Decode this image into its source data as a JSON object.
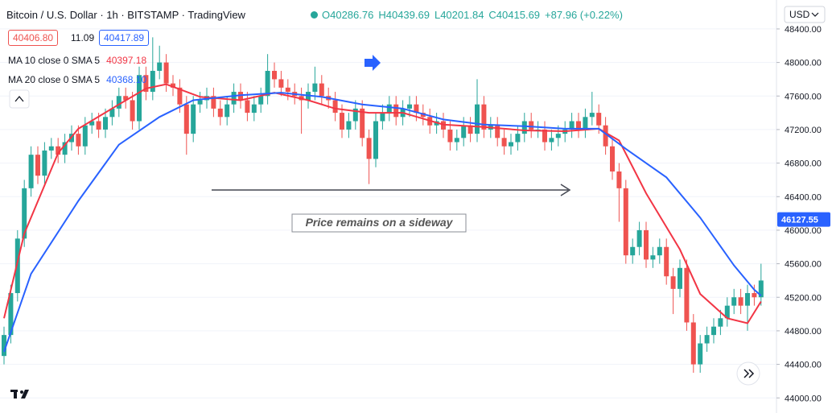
{
  "chart_data": {
    "type": "candlestick",
    "title": "Bitcoin / U.S. Dollar · 1h · BITSTAMP · TradingView",
    "ohlc_legend": [
      "O40286.76",
      "H40439.69",
      "L40201.84",
      "C40415.69",
      "+87.96 (+0.22%)"
    ],
    "quote": {
      "bid": "40406.80",
      "spread": "11.09",
      "ask": "40417.89"
    },
    "currency": "USD",
    "annotation": "Price remains on a sideway",
    "current_price": 46127.55,
    "up_color": "#26a69a",
    "down_color": "#ef5350",
    "ylim": [
      43820,
      48745
    ],
    "yticks": [
      {
        "value": 44000,
        "label": "44000.00"
      },
      {
        "value": 44400,
        "label": "44400.00"
      },
      {
        "value": 44800,
        "label": "44800.00"
      },
      {
        "value": 45200,
        "label": "45200.00"
      },
      {
        "value": 45600,
        "label": "45600.00"
      },
      {
        "value": 46000,
        "label": "46000.00"
      },
      {
        "value": 46400,
        "label": "46400.00"
      },
      {
        "value": 46800,
        "label": "46800.00"
      },
      {
        "value": 47200,
        "label": "47200.00"
      },
      {
        "value": 47600,
        "label": "47600.00"
      },
      {
        "value": 48000,
        "label": "48000.00"
      },
      {
        "value": 48400,
        "label": "48400.00"
      }
    ],
    "grid": true,
    "ohlc": {
      "open": [
        44500,
        44750,
        45250,
        45900,
        46500,
        46900,
        46650,
        46950,
        47000,
        46900,
        47050,
        47150,
        47000,
        47250,
        47300,
        47200,
        47350,
        47450,
        47600,
        47550,
        47300,
        47850,
        47650,
        47900,
        48000,
        47750,
        47700,
        47500,
        47150,
        47500,
        47550,
        47600,
        47450,
        47350,
        47500,
        47650,
        47550,
        47400,
        47500,
        47600,
        47900,
        47800,
        47700,
        47650,
        47600,
        47550,
        47650,
        47750,
        47600,
        47550,
        47400,
        47200,
        47300,
        47450,
        47100,
        46850,
        47300,
        47400,
        47500,
        47350,
        47450,
        47500,
        47400,
        47350,
        47250,
        47300,
        47200,
        47050,
        47100,
        47250,
        47150,
        47500,
        47200,
        47250,
        47100,
        47000,
        47050,
        47150,
        47300,
        47200,
        47200,
        47050,
        47100,
        47150,
        47200,
        47300,
        47200,
        47350,
        47400,
        47250,
        47000,
        46700,
        46500,
        45700,
        45800,
        46000,
        45650,
        45700,
        45800,
        45450,
        45300,
        45550,
        44900,
        44400,
        44650,
        44750,
        44850,
        44950,
        45100,
        45200,
        45100,
        45250,
        45200
      ],
      "high": [
        44850,
        45350,
        46000,
        46600,
        47000,
        47000,
        47050,
        47100,
        47100,
        47150,
        47250,
        47250,
        47350,
        47400,
        47400,
        47450,
        47550,
        47700,
        47700,
        47650,
        47950,
        47950,
        48300,
        48200,
        48100,
        47850,
        47800,
        47600,
        47600,
        47650,
        47700,
        47700,
        47550,
        47600,
        47750,
        47750,
        47650,
        47600,
        47700,
        48100,
        48000,
        47900,
        47800,
        47750,
        47700,
        47750,
        47950,
        47850,
        47700,
        47650,
        47500,
        47400,
        47550,
        47550,
        47200,
        47400,
        47500,
        47600,
        47600,
        47550,
        47600,
        47600,
        47500,
        47450,
        47400,
        47400,
        47300,
        47200,
        47350,
        47350,
        47800,
        47600,
        47350,
        47350,
        47200,
        47150,
        47250,
        47400,
        47400,
        47300,
        47300,
        47200,
        47250,
        47300,
        47400,
        47400,
        47450,
        47650,
        47500,
        47350,
        47100,
        46800,
        46600,
        45900,
        46100,
        46100,
        45800,
        45900,
        45900,
        45550,
        45650,
        45650,
        45000,
        44750,
        44850,
        44950,
        45050,
        45200,
        45300,
        45300,
        45350,
        45350,
        45600
      ],
      "low": [
        44400,
        44650,
        45150,
        45800,
        46400,
        46550,
        46550,
        46850,
        46800,
        46800,
        46950,
        46900,
        46900,
        47150,
        47100,
        47100,
        47250,
        47350,
        47450,
        47200,
        47200,
        47550,
        47550,
        47800,
        47650,
        47600,
        47400,
        46900,
        47050,
        47400,
        47450,
        47350,
        47250,
        47250,
        47400,
        47450,
        47300,
        47300,
        47400,
        47500,
        47700,
        47600,
        47550,
        47500,
        47150,
        47450,
        47550,
        47500,
        47450,
        47300,
        47100,
        47100,
        47200,
        47000,
        46550,
        46750,
        47200,
        47300,
        47250,
        47250,
        47350,
        47300,
        47250,
        47150,
        47150,
        47100,
        46950,
        46950,
        47000,
        47050,
        47050,
        47100,
        47100,
        47000,
        46900,
        46900,
        46950,
        47050,
        47100,
        47100,
        46950,
        46950,
        47000,
        47050,
        47100,
        47100,
        47100,
        47250,
        47150,
        46900,
        46600,
        46100,
        45600,
        45600,
        45700,
        45550,
        45550,
        45600,
        45350,
        45000,
        45200,
        44800,
        44300,
        44300,
        44550,
        44650,
        44750,
        44850,
        45000,
        45000,
        44800,
        45100,
        45100
      ],
      "close": [
        44750,
        45250,
        45900,
        46500,
        46900,
        46650,
        46950,
        47000,
        46900,
        47050,
        47150,
        47000,
        47250,
        47300,
        47200,
        47350,
        47450,
        47600,
        47550,
        47300,
        47850,
        47650,
        47900,
        48000,
        47750,
        47700,
        47500,
        47150,
        47500,
        47550,
        47600,
        47450,
        47350,
        47500,
        47650,
        47550,
        47400,
        47500,
        47600,
        47900,
        47800,
        47700,
        47650,
        47600,
        47550,
        47650,
        47750,
        47600,
        47550,
        47400,
        47200,
        47300,
        47450,
        47100,
        46850,
        47300,
        47400,
        47500,
        47350,
        47450,
        47500,
        47400,
        47350,
        47250,
        47300,
        47200,
        47050,
        47100,
        47250,
        47150,
        47500,
        47200,
        47250,
        47100,
        47000,
        47050,
        47150,
        47300,
        47200,
        47200,
        47050,
        47100,
        47150,
        47200,
        47300,
        47200,
        47350,
        47400,
        47250,
        47000,
        46700,
        46500,
        45700,
        45800,
        46000,
        45650,
        45700,
        45800,
        45450,
        45300,
        45550,
        44900,
        44400,
        44650,
        44750,
        44850,
        44950,
        45100,
        45200,
        45100,
        45250,
        45200,
        45400
      ]
    },
    "moving_averages": [
      {
        "name": "MA 10 close 0 SMA 5",
        "value": "40397.18",
        "color": "#f23645",
        "x": [
          0,
          3,
          8,
          11,
          17,
          21,
          24,
          29,
          35,
          40,
          45,
          49,
          54,
          59,
          65,
          71,
          77,
          83,
          88,
          91,
          95,
          100,
          103,
          107,
          110,
          112
        ],
        "values": [
          44950,
          45960,
          46920,
          47210,
          47500,
          47690,
          47740,
          47590,
          47550,
          47640,
          47550,
          47450,
          47400,
          47400,
          47260,
          47230,
          47190,
          47180,
          47210,
          47070,
          46440,
          45770,
          45240,
          44950,
          44890,
          45150
        ]
      },
      {
        "name": "MA 20 close 0 SMA 5",
        "value": "40368.10",
        "color": "#2962ff",
        "x": [
          0,
          4,
          11,
          17,
          23,
          28,
          35,
          41,
          47,
          53,
          59,
          65,
          71,
          77,
          83,
          88,
          92,
          98,
          103,
          108,
          111,
          112
        ],
        "values": [
          44550,
          45480,
          46350,
          47020,
          47350,
          47550,
          47610,
          47640,
          47590,
          47500,
          47450,
          47320,
          47260,
          47240,
          47210,
          47210,
          46970,
          46630,
          46150,
          45580,
          45290,
          45220
        ]
      }
    ]
  }
}
